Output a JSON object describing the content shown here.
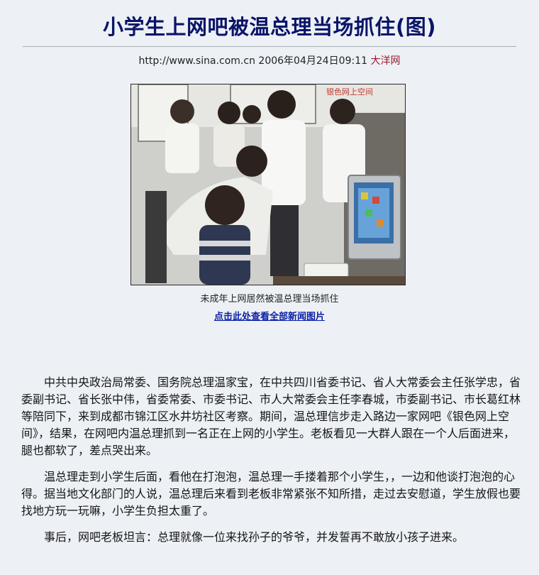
{
  "article": {
    "headline": "小学生上网吧被温总理当场抓住(图)",
    "source_url": "http://www.sina.com.cn",
    "datetime": "2006年04月24日09:11",
    "source_name": "大洋网",
    "photo_caption": "未成年上网居然被温总理当场抓住",
    "photo_sign": "银色网上空间",
    "more_photos_link": "点击此处查看全部新闻图片",
    "paragraphs": [
      "中共中央政治局常委、国务院总理温家宝，在中共四川省委书记、省人大常委会主任张学忠，省委副书记、省长张中伟，省委常委、市委书记、市人大常委会主任李春城，市委副书记、市长葛红林等陪同下，来到成都市锦江区水井坊社区考察。期间，温总理信步走入路边一家网吧《银色网上空间》，结果，在网吧内温总理抓到一名正在上网的小学生。老板看见一大群人跟在一个人后面进来，腿也都软了，差点哭出来。",
      "温总理走到小学生后面，看他在打泡泡，温总理一手搂着那个小学生，，一边和他谈打泡泡的心得。据当地文化部门的人说，温总理后来看到老板非常紧张不知所措，走过去安慰道，学生放假也要找地方玩一玩嘛，小学生负担太重了。",
      "事后，网吧老板坦言：总理就像一位来找孙子的爷爷，并发誓再不敢放小孩子进来。"
    ]
  }
}
